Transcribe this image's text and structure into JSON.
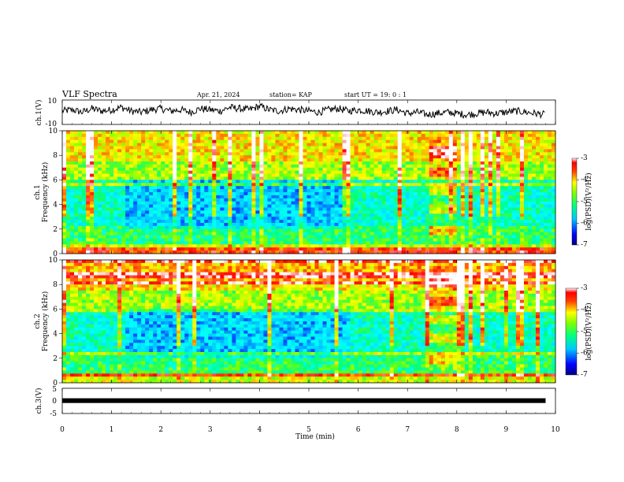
{
  "header": {
    "title": "VLF Spectra",
    "date": "Apr. 21, 2024",
    "station": "station= KAP",
    "start_ut": "start UT =  19: 0 : 1"
  },
  "colors": {
    "colormap": [
      "#000080",
      "#0000ff",
      "#00a0ff",
      "#00ffff",
      "#00ff80",
      "#80ff00",
      "#ffff00",
      "#ff8000",
      "#ff0000",
      "#ffffff"
    ]
  },
  "chart_data": [
    {
      "id": "ch1-waveform",
      "type": "line",
      "ylabel": "ch.1(V)",
      "ylim": [
        -10,
        10
      ],
      "yticks": [
        "10",
        "-10"
      ],
      "xlim": [
        0,
        10
      ],
      "series": [
        {
          "x": [
            0,
            0.2,
            0.4,
            0.6,
            0.8,
            1.0,
            1.2,
            1.4,
            1.6,
            1.8,
            2.0,
            2.2,
            2.4,
            2.6,
            2.8,
            3.0,
            3.2,
            3.4,
            3.6,
            3.8,
            4.0,
            4.2,
            4.4,
            4.6,
            4.8,
            5.0,
            5.2,
            5.4,
            5.6,
            5.8,
            6.0,
            6.2,
            6.4,
            6.6,
            6.8,
            7.0,
            7.2,
            7.4,
            7.6,
            7.8,
            8.0,
            8.2,
            8.4,
            8.6,
            8.8,
            9.0,
            9.2,
            9.4,
            9.6,
            9.8
          ],
          "values": [
            1,
            2,
            0,
            3,
            1,
            2,
            4,
            1,
            0,
            2,
            3,
            1,
            2,
            0,
            3,
            2,
            1,
            4,
            3,
            2,
            5,
            2,
            1,
            3,
            2,
            1,
            0,
            2,
            3,
            1,
            2,
            1,
            0,
            1,
            2,
            -1,
            0,
            -2,
            -1,
            0,
            -1,
            -2,
            -1,
            0,
            -1,
            0,
            1,
            0,
            -1,
            -2
          ]
        }
      ]
    },
    {
      "id": "ch1-spectrogram",
      "type": "heatmap",
      "ylabel": "ch.1\nFrequency (kHz)",
      "ylim": [
        0,
        10
      ],
      "yticks": [
        "0",
        "2",
        "4",
        "6",
        "8",
        "10"
      ],
      "xlim": [
        0,
        10
      ],
      "colorbar": {
        "label": "log(PSD)(V²/Hz)",
        "range": [
          -7,
          -3
        ],
        "ticks": [
          "-3",
          "-4",
          "-5",
          "-6",
          "-7"
        ]
      }
    },
    {
      "id": "ch2-spectrogram",
      "type": "heatmap",
      "ylabel": "ch.2\nFrequency (kHz)",
      "ylim": [
        0,
        10
      ],
      "yticks": [
        "0",
        "2",
        "4",
        "6",
        "8",
        "10"
      ],
      "xlim": [
        0,
        10
      ],
      "colorbar": {
        "label": "log(PSD)(V²/Hz)",
        "range": [
          -7,
          -3
        ],
        "ticks": [
          "-3",
          "-4",
          "-5",
          "-6",
          "-7"
        ]
      }
    },
    {
      "id": "ch3-waveform",
      "type": "line",
      "ylabel": "ch.3(V)",
      "ylim": [
        -5,
        5
      ],
      "yticks": [
        "5",
        "0",
        "-5"
      ],
      "xlim": [
        0,
        10
      ],
      "xlabel": "Time (min)",
      "xticks": [
        "0",
        "1",
        "2",
        "3",
        "4",
        "5",
        "6",
        "7",
        "8",
        "9",
        "10"
      ],
      "series": [
        {
          "x": [
            0,
            9.8
          ],
          "values": [
            0.1,
            0.1
          ]
        }
      ]
    }
  ]
}
